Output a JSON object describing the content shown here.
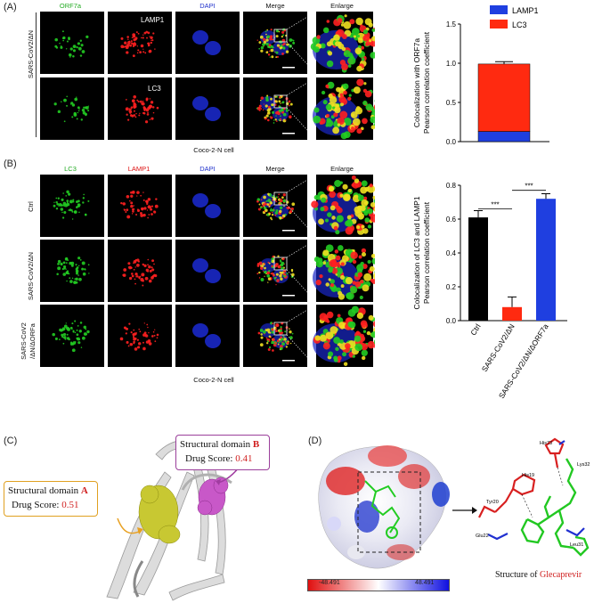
{
  "panel_a": {
    "label": "(A)",
    "headers": [
      "ORF7a",
      "",
      "DAPI",
      "Merge",
      "Enlarge"
    ],
    "row_label": "SARS-CoV2/ΔN",
    "inset_top": "LAMP1",
    "inset_bottom": "LC3",
    "caption": "Coco-2-N cell",
    "colors": {
      "green": "#22cc22",
      "red": "#ff2020",
      "blue": "#2233ff"
    }
  },
  "panel_b": {
    "label": "(B)",
    "headers": [
      "LC3",
      "LAMP1",
      "DAPI",
      "Merge",
      "Enlarge"
    ],
    "row_labels": [
      "Ctrl",
      "SARS-CoV2/ΔN",
      "SARS-CoV2",
      "/ΔN/ΔORFa"
    ],
    "caption": "Coco-2-N cell"
  },
  "panel_c": {
    "label": "(C)",
    "domain_a_prefix": "Structural domain ",
    "domain_a_letter": "A",
    "domain_a_score_label": "Drug Score:",
    "domain_a_score": "0.51",
    "domain_b_prefix": "Structural domain ",
    "domain_b_letter": "B",
    "domain_b_score_label": "Drug Score:",
    "domain_b_score": "0.41"
  },
  "panel_d": {
    "label": "(D)",
    "scale_min": "-48.491",
    "scale_max": "48.491",
    "residues": [
      "His73",
      "Lys32",
      "His19",
      "Tyr20",
      "Leu31",
      "Glu22"
    ],
    "structure_prefix": "Structure of ",
    "structure_name": "Glecaprevir"
  },
  "chart_data": [
    {
      "type": "bar",
      "stacked": true,
      "categories": [
        ""
      ],
      "series": [
        {
          "name": "LAMP1",
          "values": [
            0.13
          ],
          "color": "#1f3fe0"
        },
        {
          "name": "LC3",
          "values": [
            0.86
          ],
          "color": "#ff2a10"
        }
      ],
      "total_error": 0.03,
      "ylabel": "Colocalization with ORF7a\nPearson correlation coefficient",
      "ylim": [
        0,
        1.5
      ],
      "yticks": [
        "0.0",
        "0.5",
        "1.0",
        "1.5"
      ],
      "legend": "top"
    },
    {
      "type": "bar",
      "categories": [
        "Ctrl",
        "SARS-CoV2/ΔN",
        "SARS-CoV2/ΔN/ΔORF7a"
      ],
      "values": [
        0.61,
        0.08,
        0.72
      ],
      "errors": [
        0.04,
        0.06,
        0.03
      ],
      "colors": [
        "#000000",
        "#ff2a10",
        "#1f3fe0"
      ],
      "ylabel": "Colocalization of LC3 and LAMP1\nPearson correlation coefficient",
      "ylim": [
        0,
        0.8
      ],
      "yticks": [
        "0.0",
        "0.2",
        "0.4",
        "0.6",
        "0.8"
      ],
      "significance": [
        "***",
        "***"
      ]
    }
  ]
}
